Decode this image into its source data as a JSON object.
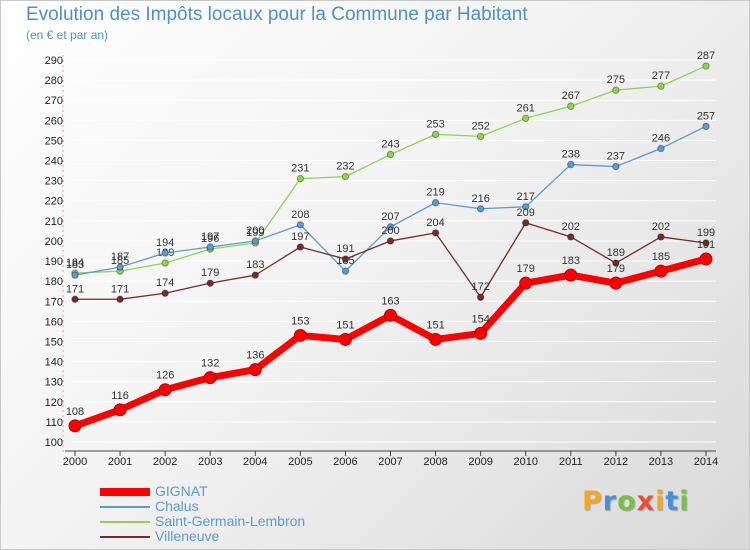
{
  "title": "Evolution des Impôts locaux pour la Commune par Habitant",
  "subtitle": "(en € et par an)",
  "logo": {
    "letters": [
      "P",
      "r",
      "o",
      "x",
      "i",
      "t",
      "i"
    ],
    "colors": [
      "#f5a623",
      "#4a90d9",
      "#7ac143",
      "#e94e3c",
      "#f5a623",
      "#4a90d9",
      "#7ac143"
    ]
  },
  "chart_data": {
    "type": "line",
    "x": [
      "2000",
      "2001",
      "2002",
      "2003",
      "2004",
      "2005",
      "2006",
      "2007",
      "2008",
      "2009",
      "2010",
      "2011",
      "2012",
      "2013",
      "2014"
    ],
    "ylim": [
      100,
      290
    ],
    "yticks": [
      100,
      110,
      120,
      130,
      140,
      150,
      160,
      170,
      180,
      190,
      200,
      210,
      220,
      230,
      240,
      250,
      260,
      270,
      280,
      290
    ],
    "grid": "horizontal",
    "legend": "bottom-left",
    "series": [
      {
        "name": "Saint-Germain-Lembron",
        "color": "#8fd44f",
        "values": [
          184,
          185,
          189,
          196,
          199,
          231,
          232,
          243,
          253,
          252,
          261,
          267,
          275,
          277,
          287
        ]
      },
      {
        "name": "Chalus",
        "color": "#5b9bd5",
        "values": [
          183,
          187,
          194,
          197,
          200,
          208,
          185,
          207,
          219,
          216,
          217,
          238,
          237,
          246,
          257
        ]
      },
      {
        "name": "Villeneuve",
        "color": "#7a2a2a",
        "values": [
          171,
          171,
          174,
          179,
          183,
          197,
          191,
          200,
          204,
          172,
          209,
          202,
          189,
          202,
          199
        ]
      },
      {
        "name": "GIGNAT",
        "color": "#ff0000",
        "values": [
          108,
          116,
          126,
          132,
          136,
          153,
          151,
          163,
          151,
          154,
          179,
          183,
          179,
          185,
          191
        ]
      }
    ],
    "legend_order": [
      "GIGNAT",
      "Chalus",
      "Saint-Germain-Lembron",
      "Villeneuve"
    ]
  }
}
